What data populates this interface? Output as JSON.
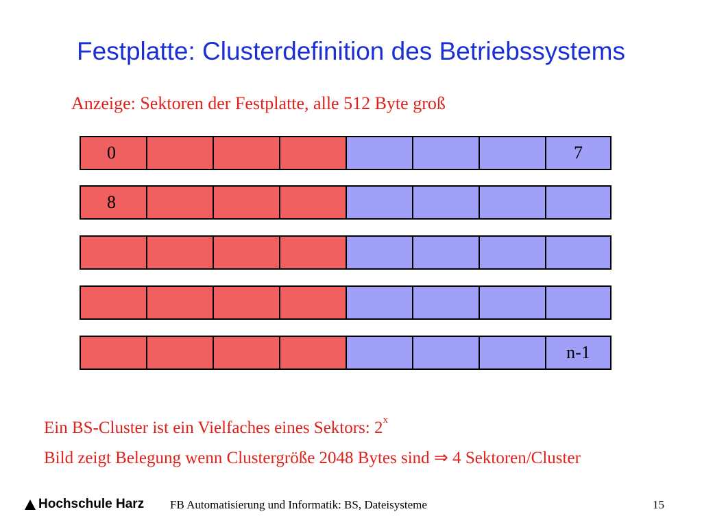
{
  "title": "Festplatte: Clusterdefinition des Betriebssystems",
  "subtitle": "Anzeige: Sektoren der Festplatte, alle 512 Byte groß",
  "colors": {
    "title": "#1a2fd6",
    "text_red": "#e0201b",
    "cluster_red": "#f06060",
    "cluster_blue": "#a0a0f8"
  },
  "rows": [
    {
      "cells": [
        "0",
        "",
        "",
        "",
        "",
        "",
        "",
        "7"
      ]
    },
    {
      "cells": [
        "8",
        "",
        "",
        "",
        "",
        "",
        "",
        ""
      ]
    },
    {
      "cells": [
        "",
        "",
        "",
        "",
        "",
        "",
        "",
        ""
      ]
    },
    {
      "cells": [
        "",
        "",
        "",
        "",
        "",
        "",
        "",
        ""
      ]
    },
    {
      "cells": [
        "",
        "",
        "",
        "",
        "",
        "",
        "",
        "n-1"
      ]
    }
  ],
  "cell_colors": [
    "red",
    "red",
    "red",
    "red",
    "blue",
    "blue",
    "blue",
    "blue"
  ],
  "notes": {
    "line1_text": "Ein BS-Cluster ist ein Vielfaches eines Sektors: 2",
    "line1_sup": "x",
    "line2_text": "Bild zeigt Belegung wenn Clustergröße 2048 Bytes sind ⇒ 4 Sektoren/Cluster"
  },
  "footer": {
    "logo": "Hochschule Harz",
    "text": "FB Automatisierung und Informatik: BS, Dateisysteme",
    "page": "15"
  }
}
